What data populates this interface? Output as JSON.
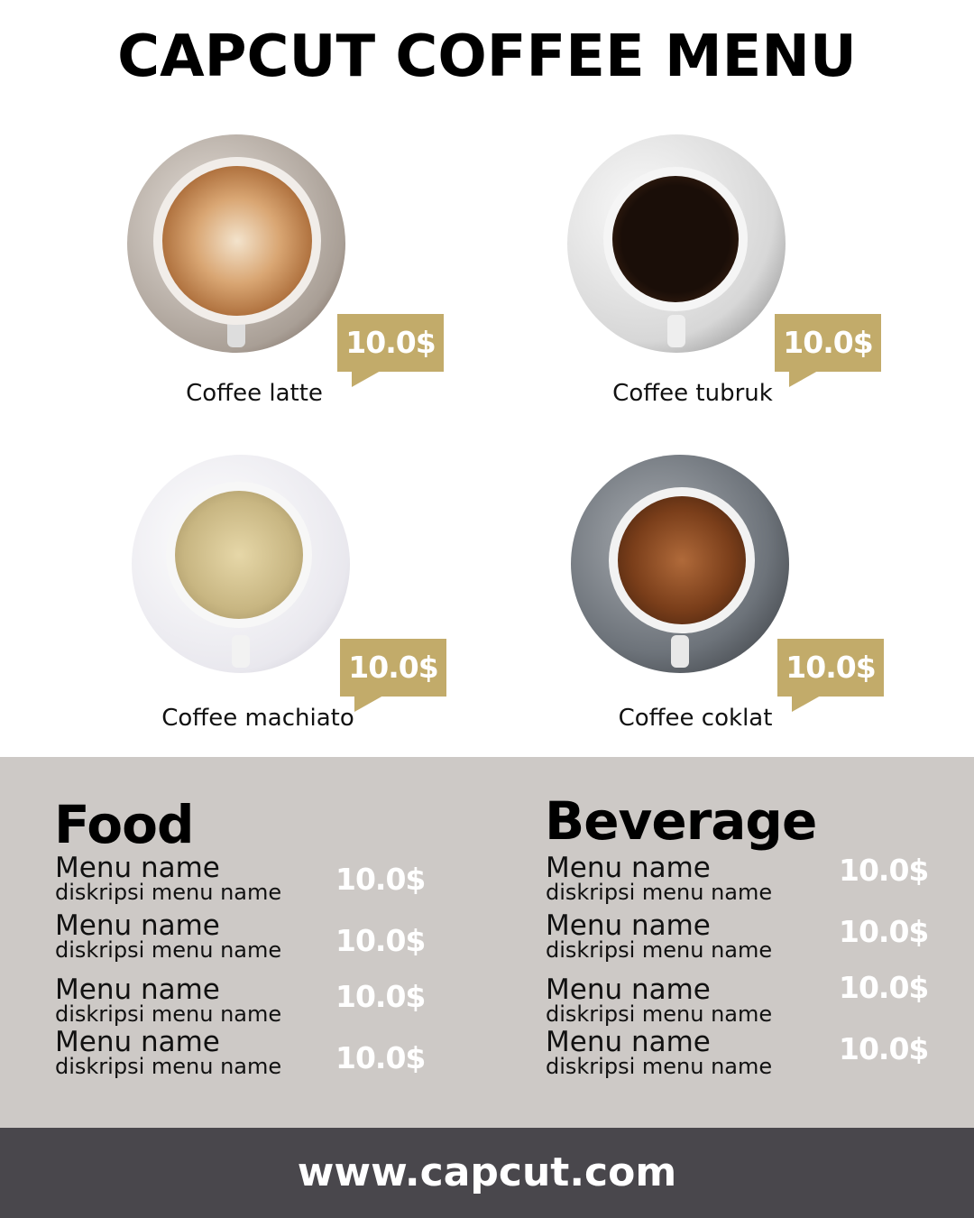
{
  "title": "CAPCUT COFFEE MENU",
  "colors": {
    "gold": "#c2ab6a",
    "panel": "#cdc9c6",
    "footer": "#49474c"
  },
  "products": [
    {
      "name": "Coffee latte",
      "price": "10.0$",
      "image": "latte-cup"
    },
    {
      "name": "Coffee tubruk",
      "price": "10.0$",
      "image": "black-coffee-cup"
    },
    {
      "name": "Coffee machiato",
      "price": "10.0$",
      "image": "machiato-cup"
    },
    {
      "name": "Coffee coklat",
      "price": "10.0$",
      "image": "chocolate-coffee-cup"
    }
  ],
  "food": {
    "heading": "Food",
    "items": [
      {
        "name": "Menu name",
        "desc": "diskripsi menu name",
        "price": "10.0$"
      },
      {
        "name": "Menu name",
        "desc": "diskripsi menu name",
        "price": "10.0$"
      },
      {
        "name": "Menu name",
        "desc": "diskripsi menu name",
        "price": "10.0$"
      },
      {
        "name": "Menu name",
        "desc": "diskripsi menu name",
        "price": "10.0$"
      }
    ]
  },
  "beverage": {
    "heading": "Beverage",
    "items": [
      {
        "name": "Menu name",
        "desc": "diskripsi menu name",
        "price": "10.0$"
      },
      {
        "name": "Menu name",
        "desc": "diskripsi menu name",
        "price": "10.0$"
      },
      {
        "name": "Menu name",
        "desc": "diskripsi menu name",
        "price": "10.0$"
      },
      {
        "name": "Menu name",
        "desc": "diskripsi menu name",
        "price": "10.0$"
      }
    ]
  },
  "footer": {
    "url": "www.capcut.com"
  }
}
